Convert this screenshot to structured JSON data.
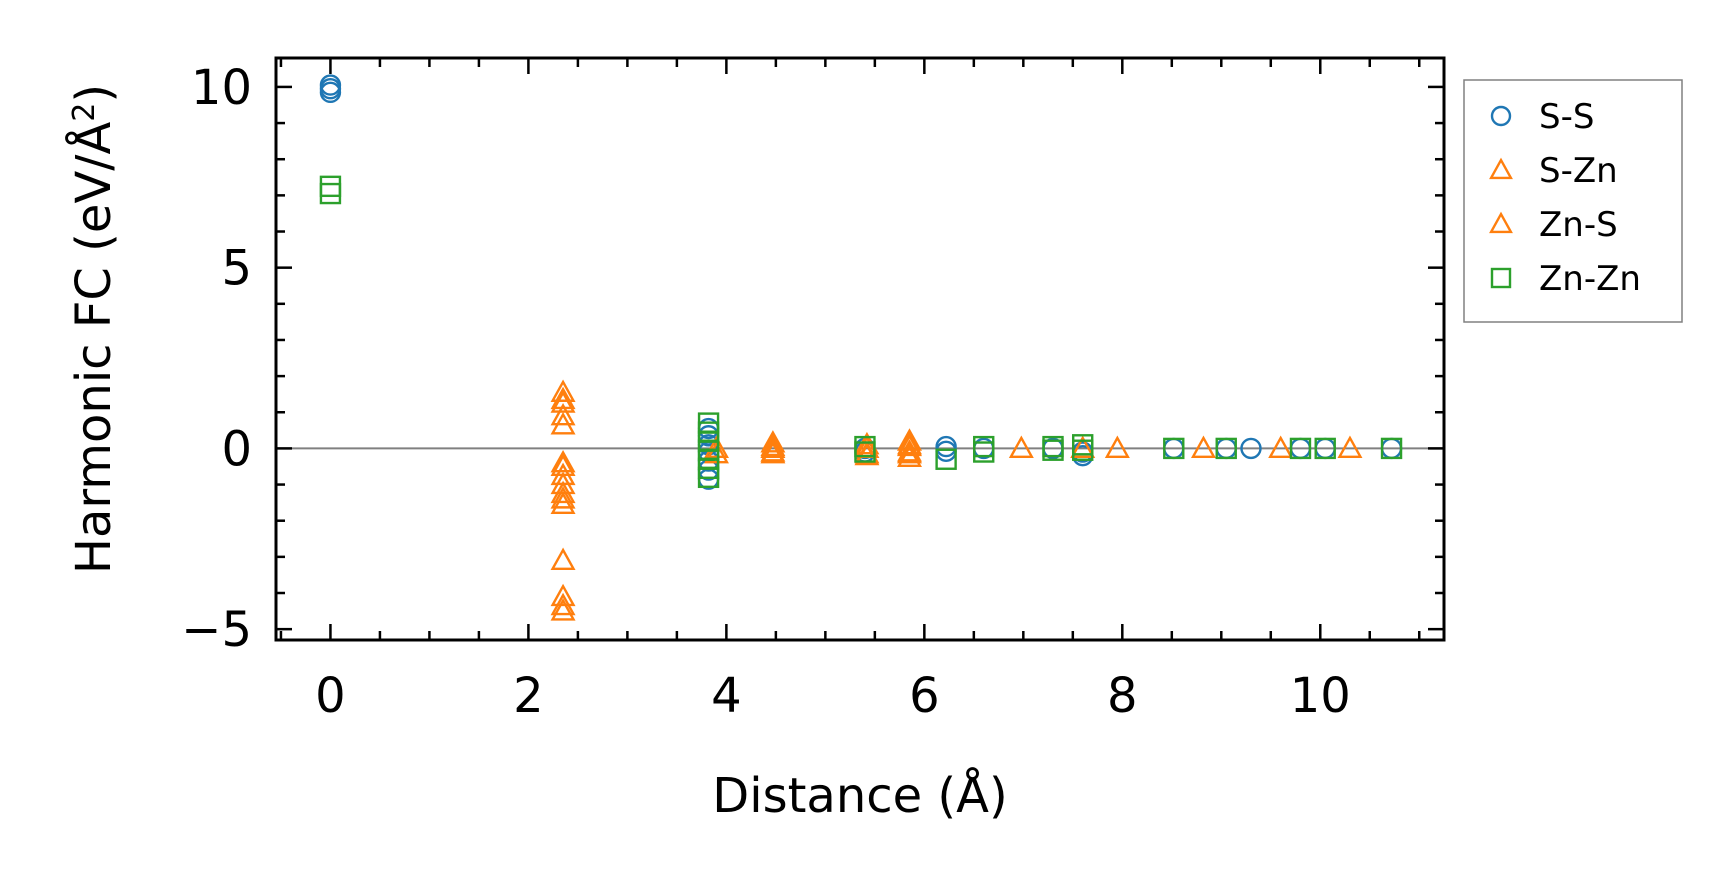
{
  "chart_data": {
    "type": "scatter",
    "xlabel": "Distance (Å)",
    "ylabel_prefix": "Harmonic FC (eV/Å",
    "ylabel_sup": "2",
    "ylabel_suffix": ")",
    "xlim": [
      -0.55,
      11.25
    ],
    "ylim": [
      -5.3,
      10.8
    ],
    "xticks": [
      0,
      2,
      4,
      6,
      8,
      10
    ],
    "xtick_labels": [
      "0",
      "2",
      "4",
      "6",
      "8",
      "10"
    ],
    "yticks": [
      -5,
      0,
      5,
      10
    ],
    "ytick_labels": [
      "−5",
      "0",
      "5",
      "10"
    ],
    "x_minor_step": 0.5,
    "y_minor_step": 1,
    "zero_line": 0,
    "grid": false,
    "legend_position": "outside-right-top",
    "series": [
      {
        "name": "S-S",
        "marker": "circle",
        "color": "#1f77b4",
        "points": [
          [
            0,
            10.05
          ],
          [
            0,
            9.95
          ],
          [
            0,
            9.85
          ],
          [
            3.82,
            0.55
          ],
          [
            3.82,
            0.35
          ],
          [
            3.82,
            0.1
          ],
          [
            3.82,
            -0.1
          ],
          [
            3.82,
            -0.35
          ],
          [
            3.82,
            -0.6
          ],
          [
            3.82,
            -0.85
          ],
          [
            5.4,
            0.0
          ],
          [
            5.4,
            -0.1
          ],
          [
            6.22,
            0.05
          ],
          [
            6.22,
            -0.08
          ],
          [
            6.6,
            0.0
          ],
          [
            7.3,
            0.0
          ],
          [
            7.6,
            -0.1
          ],
          [
            7.6,
            -0.2
          ],
          [
            8.52,
            0.0
          ],
          [
            9.05,
            0.0
          ],
          [
            9.3,
            0.0
          ],
          [
            9.8,
            0.0
          ],
          [
            10.05,
            0.0
          ],
          [
            10.72,
            0.0
          ]
        ]
      },
      {
        "name": "S-Zn",
        "marker": "triangle",
        "color": "#ff7f0e",
        "points": [
          [
            2.35,
            1.55
          ],
          [
            2.35,
            1.25
          ],
          [
            2.35,
            0.65
          ],
          [
            2.35,
            -0.4
          ],
          [
            2.35,
            -0.75
          ],
          [
            2.35,
            -1.25
          ],
          [
            2.35,
            -1.55
          ],
          [
            2.35,
            -3.1
          ],
          [
            2.35,
            -4.1
          ],
          [
            2.35,
            -4.5
          ],
          [
            3.9,
            0.0
          ],
          [
            3.9,
            -0.15
          ],
          [
            4.47,
            0.15
          ],
          [
            4.47,
            0.0
          ],
          [
            4.47,
            -0.15
          ],
          [
            5.42,
            0.1
          ],
          [
            5.42,
            -0.15
          ],
          [
            5.85,
            0.2
          ],
          [
            5.85,
            0.05
          ],
          [
            5.85,
            -0.1
          ],
          [
            5.85,
            -0.25
          ],
          [
            6.98,
            0.0
          ],
          [
            7.95,
            0.0
          ],
          [
            8.82,
            0.0
          ],
          [
            9.6,
            0.0
          ]
        ]
      },
      {
        "name": "Zn-S",
        "marker": "triangle",
        "color": "#ff7f0e",
        "points": [
          [
            2.35,
            1.35
          ],
          [
            2.35,
            0.9
          ],
          [
            2.35,
            -0.5
          ],
          [
            2.35,
            -1.0
          ],
          [
            2.35,
            -1.4
          ],
          [
            2.35,
            -4.35
          ],
          [
            4.47,
            0.05
          ],
          [
            4.47,
            -0.1
          ],
          [
            5.42,
            0.0
          ],
          [
            5.42,
            -0.2
          ],
          [
            5.85,
            0.1
          ],
          [
            5.85,
            -0.15
          ],
          [
            7.6,
            0.0
          ],
          [
            10.3,
            0.0
          ]
        ]
      },
      {
        "name": "Zn-Zn",
        "marker": "square",
        "color": "#2ca02c",
        "points": [
          [
            0,
            7.25
          ],
          [
            0,
            7.05
          ],
          [
            3.82,
            0.7
          ],
          [
            3.82,
            0.45
          ],
          [
            3.82,
            0.2
          ],
          [
            3.82,
            -0.05
          ],
          [
            3.82,
            -0.3
          ],
          [
            3.82,
            -0.55
          ],
          [
            3.82,
            -0.8
          ],
          [
            5.4,
            0.05
          ],
          [
            5.4,
            -0.1
          ],
          [
            6.22,
            -0.3
          ],
          [
            6.6,
            0.05
          ],
          [
            6.6,
            -0.1
          ],
          [
            7.3,
            0.05
          ],
          [
            7.3,
            -0.05
          ],
          [
            7.6,
            0.1
          ],
          [
            7.6,
            -0.05
          ],
          [
            8.52,
            0.0
          ],
          [
            9.05,
            0.0
          ],
          [
            9.8,
            0.0
          ],
          [
            10.05,
            0.0
          ],
          [
            10.72,
            0.0
          ]
        ]
      }
    ]
  },
  "colors": {
    "zero_line": "#808080",
    "axes": "#000000",
    "legend_border": "#808080"
  }
}
